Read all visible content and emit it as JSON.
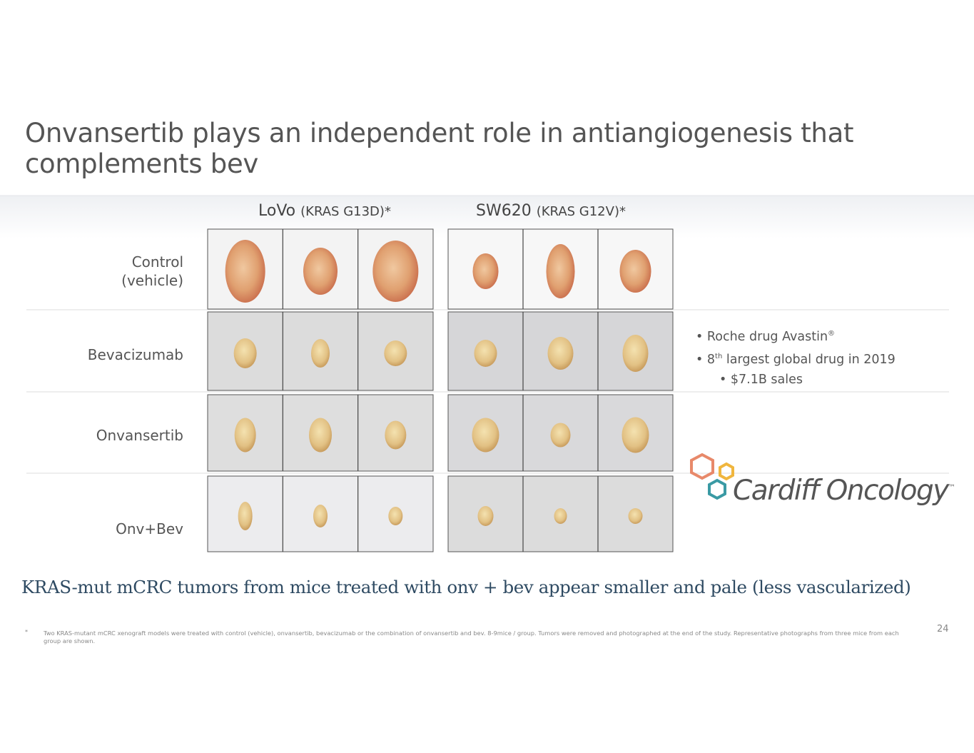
{
  "header": {
    "title": "Onvansertib plays an independent role in antiangiogenesis that complements bev"
  },
  "columns": [
    {
      "name": "LoVo",
      "detail": "(KRAS G13D)*"
    },
    {
      "name": "SW620",
      "detail": "(KRAS G12V)*"
    }
  ],
  "rows": [
    {
      "label_lines": [
        "Control",
        "(vehicle)"
      ]
    },
    {
      "label_lines": [
        "Bevacizumab"
      ]
    },
    {
      "label_lines": [
        "Onvansertib"
      ]
    },
    {
      "label_lines": [
        "Onv+Bev"
      ]
    }
  ],
  "bullets": [
    {
      "text": "Roche drug Avastin",
      "sup": "®"
    },
    {
      "lead": "8",
      "sup": "th",
      "text": "largest global drug in 2019"
    },
    {
      "text": "$7.1B sales"
    }
  ],
  "logo": {
    "name": "Cardiff Oncology",
    "mark": "™"
  },
  "caption": "KRAS-mut mCRC tumors from mice treated with onv + bev appear smaller and pale (less vascularized)",
  "footnote": {
    "marker": "*",
    "text": "Two KRAS-mutant mCRC xenograft models were treated with control (vehicle), onvansertib, bevacizumab or the combination of onvansertib and bev.  8-9mice / group. Tumors were removed and photographed at the end of the study.  Representative photographs from three mice from each group are shown."
  },
  "page_number": "24"
}
